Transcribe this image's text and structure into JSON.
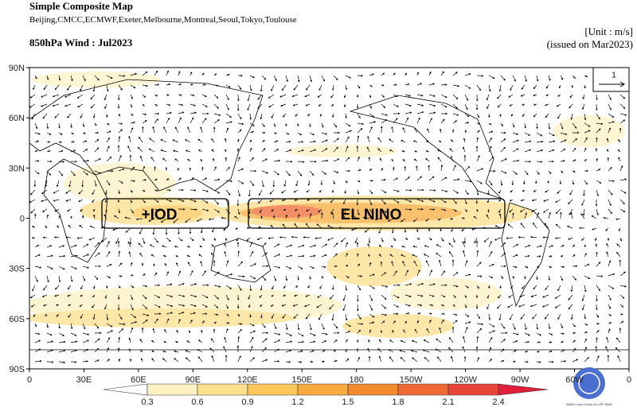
{
  "header": {
    "title": "Simple Composite Map",
    "models": "Beijing,CMCC,ECMWF,Exeter,Melbourne,Montreal,Seoul,Tokyo,Toulouse",
    "subtitle": "850hPa Wind : Jul2023",
    "unit": "[Unit : m/s]",
    "issued": "(issued on Mar2023)"
  },
  "map": {
    "lat_labels": [
      "90N",
      "60N",
      "30N",
      "0",
      "30S",
      "60S",
      "90S"
    ],
    "lon_labels": [
      "0",
      "30E",
      "60E",
      "90E",
      "120E",
      "150E",
      "180",
      "150W",
      "120W",
      "90W",
      "60W",
      "0"
    ],
    "annotations": [
      "+IOD",
      "EL NINO"
    ],
    "reference_vector": "1"
  },
  "colorbar": {
    "labels": [
      "0.3",
      "0.6",
      "0.9",
      "1.2",
      "1.5",
      "1.8",
      "2.1",
      "2.4"
    ],
    "colors": [
      "#ffffff",
      "#fdf1c4",
      "#fde08c",
      "#fbc75a",
      "#f8ab3e",
      "#f58b30",
      "#f06a35",
      "#e8453a",
      "#e0203a"
    ]
  },
  "logo": {
    "text": "WMO Lead Centre for LRF MME"
  }
}
